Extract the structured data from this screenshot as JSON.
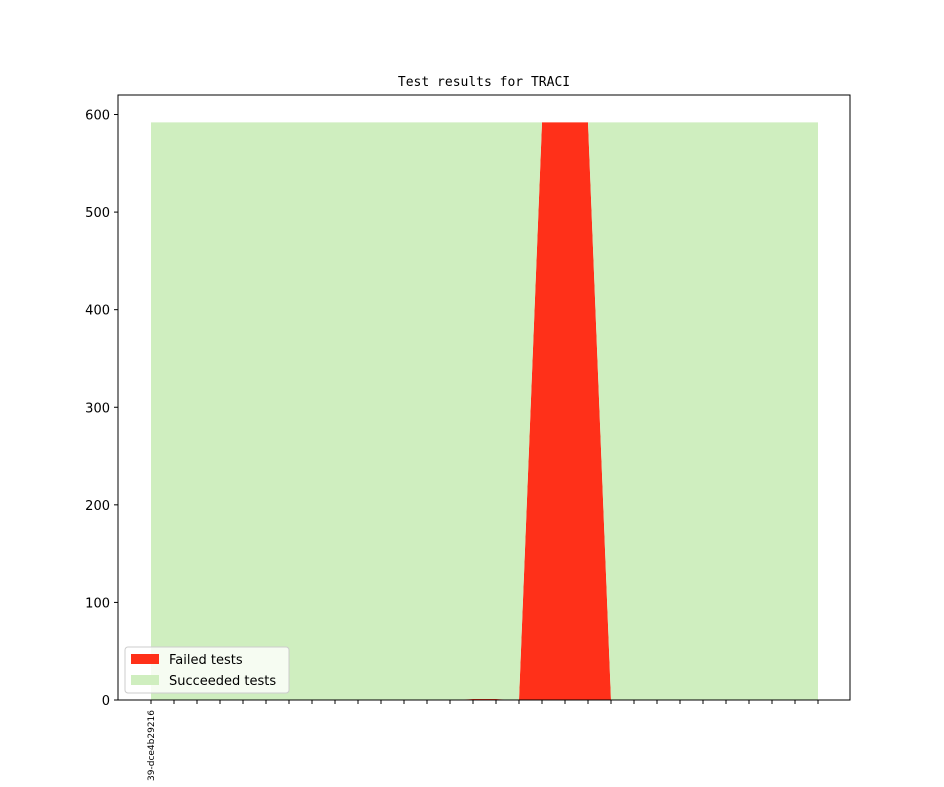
{
  "chart_data": {
    "type": "area",
    "title": "Test results for TRACI",
    "xlabel": "",
    "ylabel": "",
    "ylim": [
      0,
      620
    ],
    "yticks": [
      0,
      100,
      200,
      300,
      400,
      500,
      600
    ],
    "xtick_count": 30,
    "x_first_label": "39-dce4b29216",
    "series": [
      {
        "name": "Failed tests",
        "color": "#ff3019",
        "values": [
          0,
          0,
          0,
          0,
          0,
          0,
          0,
          0,
          0,
          0,
          0,
          0,
          0,
          0,
          1,
          1,
          0,
          592,
          592,
          592,
          0,
          0,
          0,
          0,
          0,
          0,
          0,
          0,
          0,
          0
        ]
      },
      {
        "name": "Succeeded tests",
        "color": "#cfeebf",
        "values": [
          592,
          592,
          592,
          592,
          592,
          592,
          592,
          592,
          592,
          592,
          592,
          592,
          592,
          592,
          591,
          591,
          592,
          0,
          0,
          0,
          592,
          592,
          592,
          592,
          592,
          592,
          592,
          592,
          592,
          592
        ]
      }
    ],
    "legend": {
      "position": "lower-left"
    },
    "grid": false
  }
}
